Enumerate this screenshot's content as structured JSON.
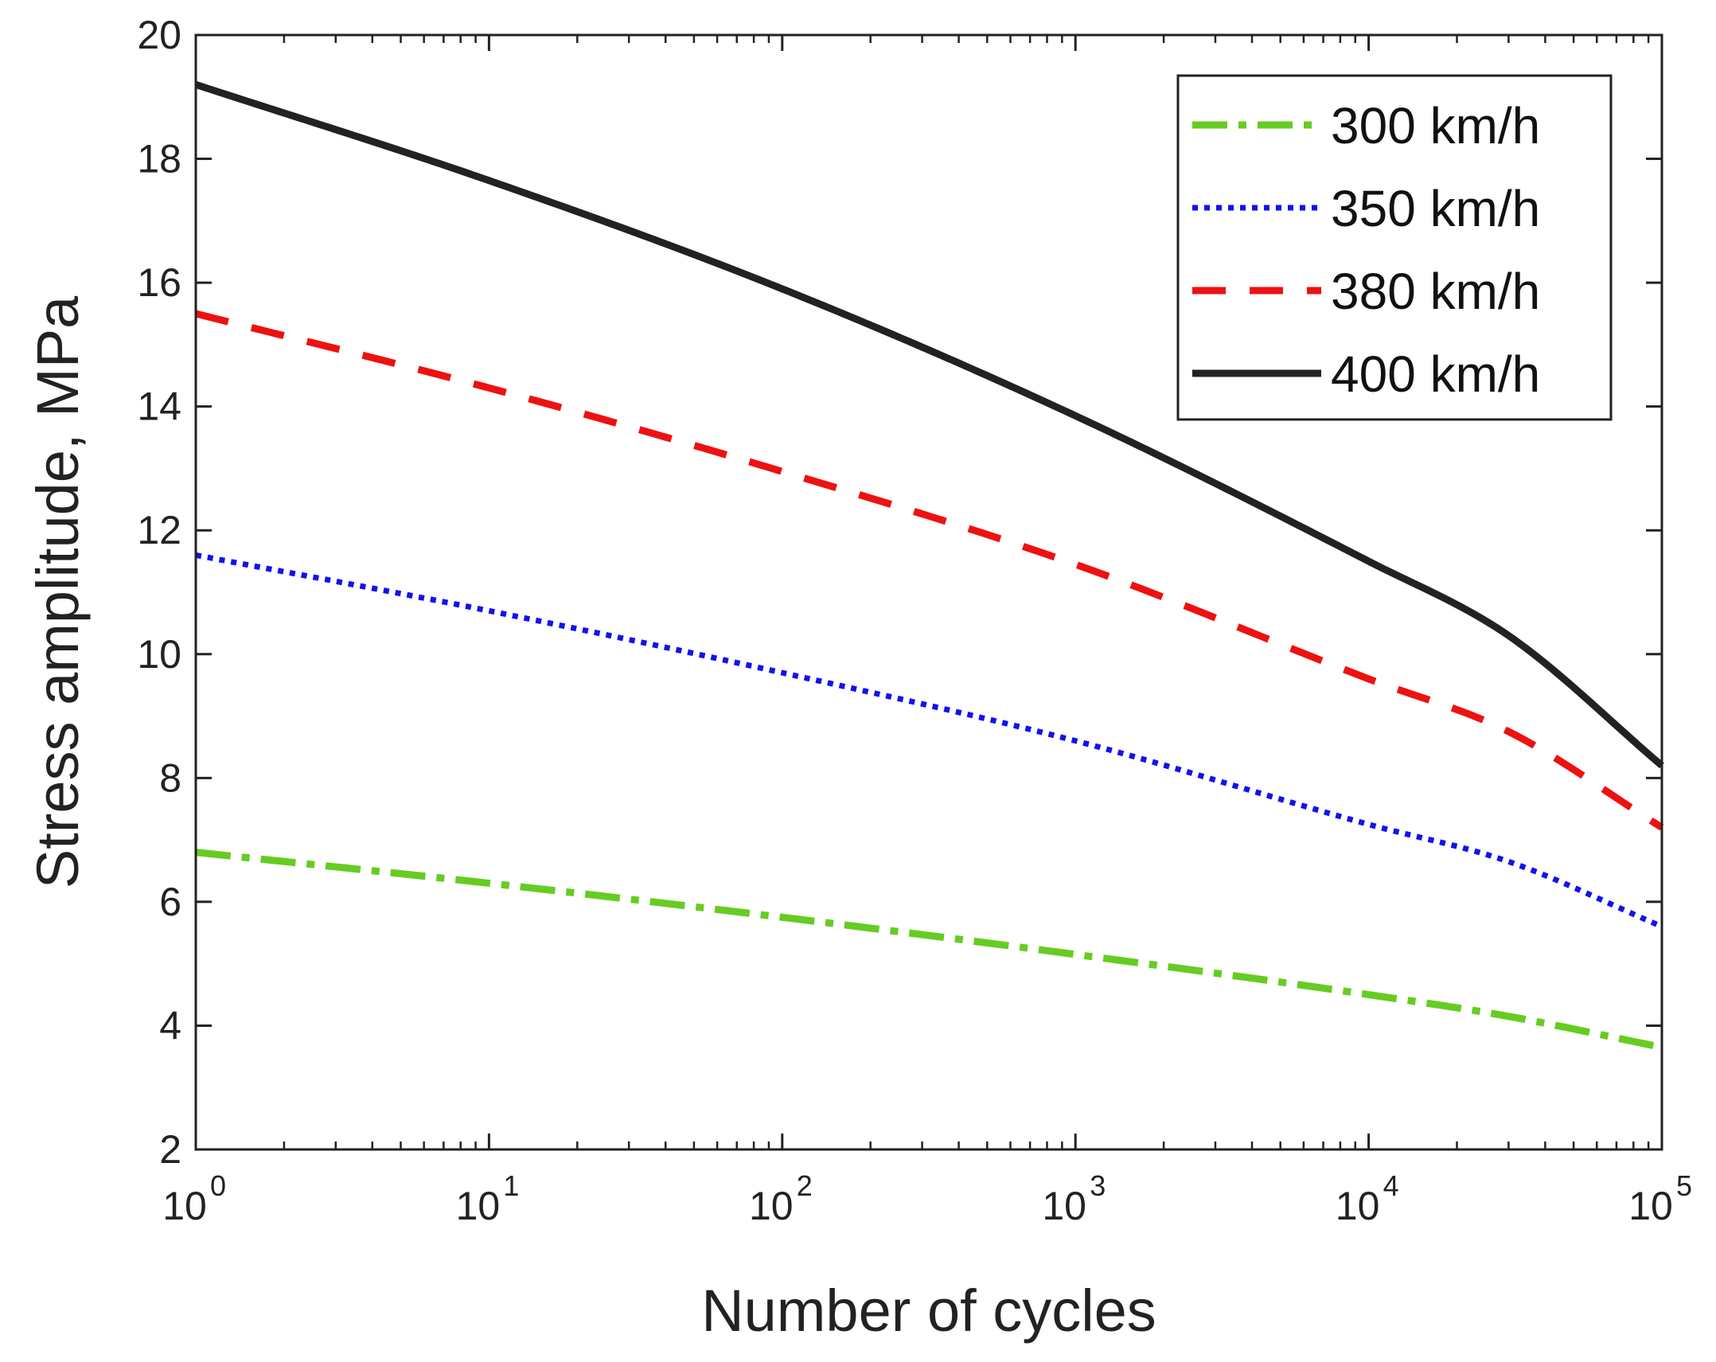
{
  "chart_data": {
    "type": "line",
    "title": "",
    "xlabel": "Number of cycles",
    "ylabel": "Stress amplitude, MPa",
    "xscale": "log",
    "xlim": [
      1,
      100000
    ],
    "ylim": [
      2,
      20
    ],
    "grid": false,
    "legend_position": "top-right",
    "x_ticks": [
      {
        "value": 1,
        "base": "10",
        "exp": "0"
      },
      {
        "value": 10,
        "base": "10",
        "exp": "1"
      },
      {
        "value": 100,
        "base": "10",
        "exp": "2"
      },
      {
        "value": 1000,
        "base": "10",
        "exp": "3"
      },
      {
        "value": 10000,
        "base": "10",
        "exp": "4"
      },
      {
        "value": 100000,
        "base": "10",
        "exp": "5"
      }
    ],
    "y_ticks": [
      "2",
      "4",
      "6",
      "8",
      "10",
      "12",
      "14",
      "16",
      "18",
      "20"
    ],
    "x": [
      1,
      10,
      100,
      1000,
      10000,
      30000,
      100000
    ],
    "series": [
      {
        "name": "300 km/h",
        "color": "#66cc22",
        "style": "dashdot",
        "values": [
          6.8,
          6.3,
          5.75,
          5.15,
          4.5,
          4.15,
          3.65
        ]
      },
      {
        "name": "350 km/h",
        "color": "#1111ee",
        "style": "dotted",
        "values": [
          11.6,
          10.7,
          9.7,
          8.6,
          7.25,
          6.65,
          5.6
        ]
      },
      {
        "name": "380 km/h",
        "color": "#ee1111",
        "style": "dashed",
        "values": [
          15.5,
          14.3,
          12.95,
          11.45,
          9.6,
          8.75,
          7.2
        ]
      },
      {
        "name": "400 km/h",
        "color": "#222222",
        "style": "solid",
        "values": [
          19.2,
          17.65,
          15.9,
          13.85,
          11.5,
          10.3,
          8.2
        ]
      }
    ]
  }
}
